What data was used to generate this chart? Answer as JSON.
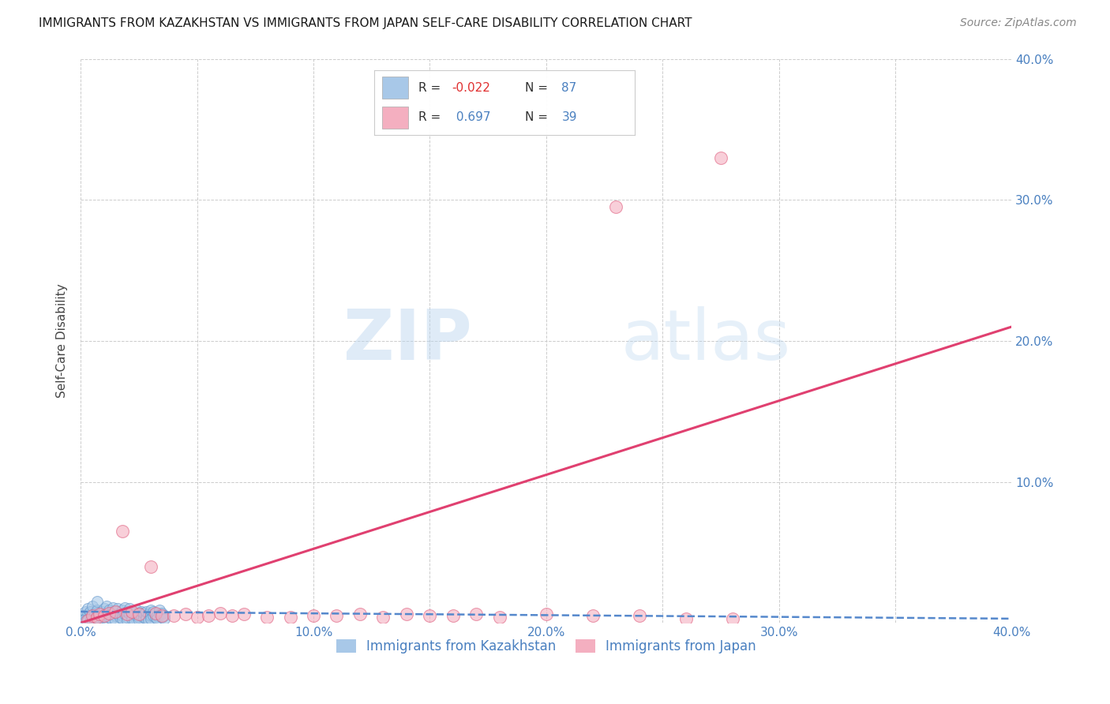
{
  "title": "IMMIGRANTS FROM KAZAKHSTAN VS IMMIGRANTS FROM JAPAN SELF-CARE DISABILITY CORRELATION CHART",
  "source": "Source: ZipAtlas.com",
  "ylabel": "Self-Care Disability",
  "xlim": [
    0.0,
    0.4
  ],
  "ylim": [
    0.0,
    0.4
  ],
  "xtick_labels": [
    "0.0%",
    "",
    "10.0%",
    "",
    "20.0%",
    "",
    "30.0%",
    "",
    "40.0%"
  ],
  "xtick_vals": [
    0.0,
    0.05,
    0.1,
    0.15,
    0.2,
    0.25,
    0.3,
    0.35,
    0.4
  ],
  "ytick_labels": [
    "",
    "10.0%",
    "20.0%",
    "30.0%",
    "40.0%"
  ],
  "ytick_vals": [
    0.0,
    0.1,
    0.2,
    0.3,
    0.4
  ],
  "kazakhstan_color": "#a8c8e8",
  "japan_color": "#f4afc0",
  "kazakhstan_edge_color": "#6699cc",
  "japan_edge_color": "#e06080",
  "kazakhstan_line_color": "#5588cc",
  "japan_line_color": "#e04070",
  "R_kazakhstan": -0.022,
  "N_kazakhstan": 87,
  "R_japan": 0.697,
  "N_japan": 39,
  "watermark_zip": "ZIP",
  "watermark_atlas": "atlas",
  "legend_label_kz": "Immigrants from Kazakhstan",
  "legend_label_jp": "Immigrants from Japan",
  "kazakhstan_points": [
    [
      0.001,
      0.005
    ],
    [
      0.002,
      0.008
    ],
    [
      0.002,
      0.003
    ],
    [
      0.003,
      0.006
    ],
    [
      0.003,
      0.01
    ],
    [
      0.004,
      0.004
    ],
    [
      0.004,
      0.008
    ],
    [
      0.005,
      0.005
    ],
    [
      0.005,
      0.012
    ],
    [
      0.005,
      0.002
    ],
    [
      0.006,
      0.007
    ],
    [
      0.006,
      0.003
    ],
    [
      0.007,
      0.009
    ],
    [
      0.007,
      0.015
    ],
    [
      0.008,
      0.006
    ],
    [
      0.008,
      0.002
    ],
    [
      0.009,
      0.008
    ],
    [
      0.009,
      0.004
    ],
    [
      0.01,
      0.01
    ],
    [
      0.01,
      0.005
    ],
    [
      0.01,
      0.002
    ],
    [
      0.011,
      0.007
    ],
    [
      0.011,
      0.012
    ],
    [
      0.012,
      0.004
    ],
    [
      0.012,
      0.009
    ],
    [
      0.013,
      0.006
    ],
    [
      0.013,
      0.003
    ],
    [
      0.014,
      0.008
    ],
    [
      0.014,
      0.011
    ],
    [
      0.015,
      0.005
    ],
    [
      0.015,
      0.008
    ],
    [
      0.015,
      0.002
    ],
    [
      0.016,
      0.006
    ],
    [
      0.016,
      0.01
    ],
    [
      0.017,
      0.004
    ],
    [
      0.017,
      0.007
    ],
    [
      0.018,
      0.005
    ],
    [
      0.018,
      0.009
    ],
    [
      0.018,
      0.003
    ],
    [
      0.019,
      0.006
    ],
    [
      0.019,
      0.011
    ],
    [
      0.02,
      0.004
    ],
    [
      0.02,
      0.008
    ],
    [
      0.02,
      0.002
    ],
    [
      0.021,
      0.006
    ],
    [
      0.021,
      0.01
    ],
    [
      0.022,
      0.005
    ],
    [
      0.022,
      0.008
    ],
    [
      0.022,
      0.003
    ],
    [
      0.023,
      0.006
    ],
    [
      0.023,
      0.002
    ],
    [
      0.024,
      0.005
    ],
    [
      0.024,
      0.009
    ],
    [
      0.025,
      0.004
    ],
    [
      0.025,
      0.007
    ],
    [
      0.025,
      0.002
    ],
    [
      0.026,
      0.005
    ],
    [
      0.026,
      0.008
    ],
    [
      0.027,
      0.004
    ],
    [
      0.027,
      0.007
    ],
    [
      0.028,
      0.005
    ],
    [
      0.028,
      0.003
    ],
    [
      0.028,
      0.008
    ],
    [
      0.029,
      0.006
    ],
    [
      0.029,
      0.002
    ],
    [
      0.03,
      0.005
    ],
    [
      0.03,
      0.009
    ],
    [
      0.03,
      0.003
    ],
    [
      0.031,
      0.005
    ],
    [
      0.031,
      0.008
    ],
    [
      0.032,
      0.004
    ],
    [
      0.032,
      0.007
    ],
    [
      0.033,
      0.005
    ],
    [
      0.033,
      0.003
    ],
    [
      0.034,
      0.006
    ],
    [
      0.034,
      0.009
    ],
    [
      0.035,
      0.004
    ],
    [
      0.035,
      0.007
    ],
    [
      0.036,
      0.005
    ],
    [
      0.036,
      0.003
    ],
    [
      0.001,
      0.002
    ],
    [
      0.002,
      0.001
    ],
    [
      0.003,
      0.002
    ],
    [
      0.004,
      0.001
    ],
    [
      0.005,
      0.001
    ],
    [
      0.006,
      0.001
    ],
    [
      0.007,
      0.001
    ]
  ],
  "japan_points": [
    [
      0.003,
      0.002
    ],
    [
      0.005,
      0.005
    ],
    [
      0.007,
      0.004
    ],
    [
      0.008,
      0.006
    ],
    [
      0.01,
      0.005
    ],
    [
      0.012,
      0.007
    ],
    [
      0.015,
      0.008
    ],
    [
      0.018,
      0.065
    ],
    [
      0.02,
      0.006
    ],
    [
      0.022,
      0.008
    ],
    [
      0.025,
      0.006
    ],
    [
      0.03,
      0.04
    ],
    [
      0.032,
      0.007
    ],
    [
      0.035,
      0.005
    ],
    [
      0.04,
      0.005
    ],
    [
      0.045,
      0.006
    ],
    [
      0.05,
      0.004
    ],
    [
      0.055,
      0.005
    ],
    [
      0.06,
      0.007
    ],
    [
      0.065,
      0.005
    ],
    [
      0.07,
      0.006
    ],
    [
      0.08,
      0.004
    ],
    [
      0.09,
      0.004
    ],
    [
      0.1,
      0.005
    ],
    [
      0.11,
      0.005
    ],
    [
      0.12,
      0.006
    ],
    [
      0.13,
      0.004
    ],
    [
      0.14,
      0.006
    ],
    [
      0.15,
      0.005
    ],
    [
      0.16,
      0.005
    ],
    [
      0.17,
      0.006
    ],
    [
      0.18,
      0.004
    ],
    [
      0.2,
      0.006
    ],
    [
      0.22,
      0.005
    ],
    [
      0.24,
      0.005
    ],
    [
      0.26,
      0.003
    ],
    [
      0.28,
      0.003
    ],
    [
      0.23,
      0.295
    ],
    [
      0.275,
      0.33
    ]
  ],
  "kz_line_x0": 0.0,
  "kz_line_x1": 0.4,
  "kz_line_y0": 0.008,
  "kz_line_y1": 0.003,
  "jp_line_x0": 0.0,
  "jp_line_x1": 0.4,
  "jp_line_y0": 0.0,
  "jp_line_y1": 0.21
}
